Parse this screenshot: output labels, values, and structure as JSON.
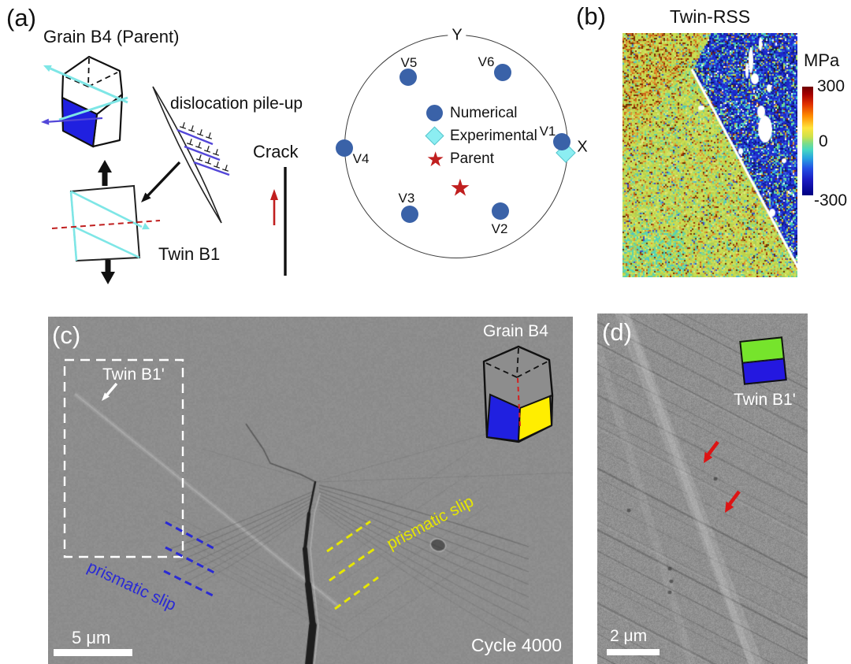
{
  "panels": {
    "a": {
      "label": "(a)",
      "parent_crystal_label": "Grain B4 (Parent)",
      "pileup_label": "dislocation pile-up",
      "twin_crystal_label": "Twin B1",
      "crack_label": "Crack"
    },
    "b": {
      "label": "(b)",
      "title": "Twin-RSS"
    },
    "c": {
      "label": "(c)",
      "twin_label": "Twin B1'",
      "grain_label": "Grain B4",
      "slip_label_left": "prismatic slip",
      "slip_label_right": "prismatic slip",
      "cycle_label": "Cycle 4000",
      "scalebar_label": "5 μm"
    },
    "d": {
      "label": "(d)",
      "twin_label": "Twin B1'",
      "scalebar_label": "2 μm"
    }
  },
  "chart_data": [
    {
      "type": "scatter",
      "title": "Pole figure of twin variant orientations (panel a)",
      "coords_note": "unit-circle fractions, x to the right, y positive downward on screen",
      "x_axis_label": "X",
      "y_axis_label": "Y",
      "legend_position": "inside upper middle",
      "series": [
        {
          "name": "Numerical",
          "marker": "circle",
          "color": "#3a62a8",
          "points": [
            {
              "label": "V1",
              "x": 0.93,
              "y": -0.049,
              "label_dx": -18,
              "label_dy": -13
            },
            {
              "label": "V2",
              "x": 0.385,
              "y": 0.566,
              "label_dx": -1,
              "label_dy": 23
            },
            {
              "label": "V3",
              "x": -0.42,
              "y": 0.594,
              "label_dx": -4,
              "label_dy": -20
            },
            {
              "label": "V4",
              "x": -1.0,
              "y": 0.007,
              "label_dx": 21,
              "label_dy": 14
            },
            {
              "label": "V5",
              "x": -0.434,
              "y": -0.622,
              "label_dx": 1,
              "label_dy": -18
            },
            {
              "label": "V6",
              "x": 0.406,
              "y": -0.664,
              "label_dx": -21,
              "label_dy": -13
            }
          ]
        },
        {
          "name": "Experimental",
          "marker": "diamond",
          "color": "#8ceef2",
          "points": [
            {
              "label": "",
              "x": 0.965,
              "y": 0.049
            }
          ]
        },
        {
          "name": "Parent",
          "marker": "star",
          "color": "#c01f1f",
          "points": [
            {
              "label": "",
              "x": 0.028,
              "y": 0.378
            }
          ]
        }
      ]
    },
    {
      "type": "heatmap",
      "title": "Twin-RSS",
      "unit": "MPa",
      "range": [
        -300,
        300
      ],
      "ticks": [
        "300",
        "0",
        "-300"
      ],
      "colormap": "jet (dark red = +300, green = 0, dark blue = -300)",
      "regions": [
        {
          "name": "parent grain (left of twin band)",
          "approx_value": "≈ 0 to +80 MPa, yellow-green with orange/dark-red speckle, denser orange at top-left"
        },
        {
          "name": "twin band interior (upper right, beyond white boundary line)",
          "approx_value": "≈ -250 to -300 MPa, dark blue with cyan speckle and white unindexed blobs"
        }
      ],
      "palettes": {
        "yellow_region": [
          [
            "#c9dd52",
            30
          ],
          [
            "#bdd34b",
            18
          ],
          [
            "#d2e266",
            10
          ],
          [
            "#a9cd5a",
            8
          ],
          [
            "#7fd98f",
            7
          ],
          [
            "#59d0a8",
            5
          ],
          [
            "#e0922f",
            6
          ],
          [
            "#bf6018",
            4
          ],
          [
            "#8a2a00",
            3
          ],
          [
            "#6a3200",
            2
          ],
          [
            "#3a50c8",
            2
          ],
          [
            "#dceb86",
            3
          ],
          [
            "#50b8d0",
            2
          ]
        ],
        "blue_region": [
          [
            "#1b2aca",
            28
          ],
          [
            "#2233d8",
            14
          ],
          [
            "#111a92",
            10
          ],
          [
            "#3a5ae2",
            8
          ],
          [
            "#31aada",
            7
          ],
          [
            "#52dac9",
            6
          ],
          [
            "#72e292",
            5
          ],
          [
            "#c9dd52",
            5
          ],
          [
            "#8a2a00",
            3
          ],
          [
            "#e0922f",
            2
          ],
          [
            "#ffffff",
            3
          ],
          [
            "#0a1268",
            6
          ],
          [
            "#202020",
            2
          ]
        ],
        "orange_patch": [
          [
            "#e0922f",
            5
          ],
          [
            "#c96818",
            4
          ],
          [
            "#8a2a00",
            3
          ],
          [
            "#c9dd52",
            6
          ],
          [
            "#bdd34b",
            4
          ],
          [
            "#6a3200",
            2
          ]
        ]
      }
    }
  ],
  "colors": {
    "c-steel": "#3a62a8",
    "c-diamond": "#8ceef2",
    "c-red": "#c01f1f",
    "c-cyan": "#7ee6e6",
    "c-violet": "#5246d8",
    "c-blue-dash": "#2a2ad4",
    "c-yellow-dash": "#e6e600",
    "c-face-blue": "#2020e0",
    "c-face-yellow": "#ffee00",
    "c-green": "#76e42c",
    "c-legend-blue": "#2418e0"
  }
}
